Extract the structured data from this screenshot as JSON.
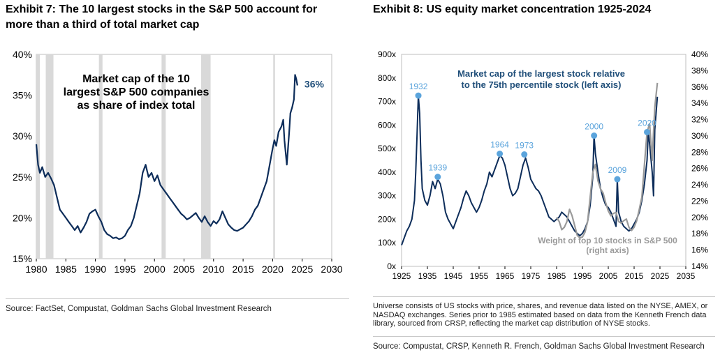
{
  "left": {
    "title": "Exhibit 7: The 10 largest stocks in the S&P 500 account for more than a third of total market cap",
    "source": "Source: FactSet, Compustat, Goldman Sachs Global Investment Research"
  },
  "right": {
    "title": "Exhibit 8: US equity market concentration 1925-2024",
    "note": "Universe consists of US stocks with price, shares, and revenue data listed on the NYSE, AMEX, or NASDAQ exchanges. Series prior to 1985 estimated based on data from the Kenneth French data library, sourced from CRSP, reflecting the market cap distribution of NYSE stocks.",
    "source": "Source: Compustat, CRSP, Kenneth R. French, Goldman Sachs Global Investment Research"
  },
  "colors": {
    "navy": "#0d2d5a",
    "gray_series": "#9a9a9a",
    "marker_blue": "#5ba4dc",
    "recession": "#d9d9d9",
    "label_blue": "#1f4e79"
  },
  "chart_data": [
    {
      "type": "line",
      "annotation": "Market cap of the 10 largest S&P 500 companies as share of index total",
      "end_label": "36%",
      "xlim": [
        1980,
        2030
      ],
      "ylim": [
        15,
        40
      ],
      "x_ticks": [
        "1980",
        "1985",
        "1990",
        "1995",
        "2000",
        "2005",
        "2010",
        "2015",
        "2020",
        "2025",
        "2030"
      ],
      "y_ticks": [
        "15%",
        "20%",
        "25%",
        "30%",
        "35%",
        "40%"
      ],
      "recessions": [
        [
          1980.0,
          1980.6
        ],
        [
          1981.6,
          1982.9
        ],
        [
          1990.6,
          1991.2
        ],
        [
          2001.2,
          2001.9
        ],
        [
          2007.9,
          2009.5
        ],
        [
          2020.1,
          2020.4
        ]
      ],
      "series": [
        {
          "x": [
            1980.0,
            1980.3,
            1980.6,
            1981.0,
            1981.5,
            1982.0,
            1982.5,
            1983.0,
            1983.5,
            1984.0,
            1984.5,
            1985.0,
            1985.5,
            1986.0,
            1986.5,
            1987.0,
            1987.5,
            1988.0,
            1988.5,
            1989.0,
            1989.5,
            1990.0,
            1990.5,
            1991.0,
            1991.5,
            1992.0,
            1992.5,
            1993.0,
            1993.5,
            1994.0,
            1994.5,
            1995.0,
            1995.5,
            1996.0,
            1996.5,
            1997.0,
            1997.5,
            1998.0,
            1998.5,
            1999.0,
            1999.5,
            2000.0,
            2000.5,
            2001.0,
            2001.5,
            2002.0,
            2002.5,
            2003.0,
            2003.5,
            2004.0,
            2004.5,
            2005.0,
            2005.5,
            2006.0,
            2006.5,
            2007.0,
            2007.5,
            2008.0,
            2008.5,
            2009.0,
            2009.5,
            2010.0,
            2010.5,
            2011.0,
            2011.5,
            2012.0,
            2012.5,
            2013.0,
            2013.5,
            2014.0,
            2014.5,
            2015.0,
            2015.5,
            2016.0,
            2016.5,
            2017.0,
            2017.5,
            2018.0,
            2018.5,
            2019.0,
            2019.5,
            2020.0,
            2020.3,
            2020.6,
            2021.0,
            2021.5,
            2021.8,
            2022.0,
            2022.4,
            2022.8,
            2023.0,
            2023.3,
            2023.6,
            2023.8,
            2024.0,
            2024.2
          ],
          "y": [
            29.0,
            26.5,
            25.5,
            26.2,
            25.0,
            25.5,
            24.8,
            24.0,
            22.5,
            21.0,
            20.5,
            20.0,
            19.5,
            19.0,
            18.5,
            19.0,
            18.2,
            18.8,
            19.5,
            20.5,
            20.8,
            21.0,
            20.2,
            19.5,
            18.5,
            18.0,
            17.8,
            17.5,
            17.6,
            17.4,
            17.5,
            17.8,
            18.5,
            19.0,
            20.0,
            21.5,
            23.0,
            25.5,
            26.5,
            25.0,
            25.5,
            24.5,
            25.2,
            24.0,
            23.5,
            23.0,
            22.5,
            22.0,
            21.5,
            21.0,
            20.5,
            20.2,
            19.8,
            20.0,
            20.3,
            20.6,
            20.0,
            19.5,
            20.2,
            19.5,
            19.0,
            19.6,
            19.3,
            19.8,
            20.8,
            20.0,
            19.2,
            18.8,
            18.5,
            18.4,
            18.6,
            18.8,
            19.2,
            19.6,
            20.2,
            21.0,
            21.5,
            22.5,
            23.5,
            24.5,
            26.5,
            28.5,
            29.5,
            28.8,
            30.5,
            31.2,
            32.0,
            29.5,
            26.5,
            30.5,
            32.8,
            33.5,
            34.5,
            37.5,
            37.0,
            36.2
          ]
        }
      ]
    },
    {
      "type": "line",
      "annotation_left": "Market cap of the largest stock relative to the 75th percentile stock (left axis)",
      "annotation_right": "Weight of top 10 stocks in S&P 500 (right axis)",
      "xlim": [
        1925,
        2035
      ],
      "ylim_left": [
        0,
        900
      ],
      "ylim_right": [
        14,
        40
      ],
      "x_ticks": [
        "1925",
        "1935",
        "1945",
        "1955",
        "1965",
        "1975",
        "1985",
        "1995",
        "2005",
        "2015",
        "2025",
        "2035"
      ],
      "y_ticks_left": [
        "0x",
        "100x",
        "200x",
        "300x",
        "400x",
        "500x",
        "600x",
        "700x",
        "800x",
        "900x"
      ],
      "y_ticks_right": [
        "14%",
        "16%",
        "18%",
        "20%",
        "22%",
        "24%",
        "26%",
        "28%",
        "30%",
        "32%",
        "34%",
        "36%",
        "38%",
        "40%"
      ],
      "peaks": [
        {
          "label": "1932",
          "x": 1931.5,
          "y": 725
        },
        {
          "label": "1939",
          "x": 1939.0,
          "y": 380
        },
        {
          "label": "1964",
          "x": 1963.0,
          "y": 478
        },
        {
          "label": "1973",
          "x": 1972.5,
          "y": 475
        },
        {
          "label": "2000",
          "x": 1999.5,
          "y": 555
        },
        {
          "label": "2009",
          "x": 2008.5,
          "y": 370
        },
        {
          "label": "2020",
          "x": 2020.0,
          "y": 570
        }
      ],
      "series": [
        {
          "axis": "left",
          "x": [
            1925,
            1926,
            1927,
            1928,
            1929,
            1930,
            1930.5,
            1931,
            1931.5,
            1932,
            1932.5,
            1933,
            1934,
            1935,
            1936,
            1937,
            1938,
            1939,
            1940,
            1941,
            1942,
            1943,
            1944,
            1945,
            1946,
            1947,
            1948,
            1949,
            1950,
            1951,
            1952,
            1953,
            1954,
            1955,
            1956,
            1957,
            1958,
            1959,
            1960,
            1961,
            1962,
            1963,
            1964,
            1965,
            1966,
            1967,
            1968,
            1969,
            1970,
            1971,
            1972,
            1973,
            1974,
            1975,
            1976,
            1977,
            1978,
            1979,
            1980,
            1981,
            1982,
            1983,
            1984,
            1985,
            1986,
            1987,
            1988,
            1989,
            1990,
            1991,
            1992,
            1993,
            1994,
            1995,
            1996,
            1997,
            1998,
            1999,
            1999.5,
            2000,
            2001,
            2002,
            2003,
            2004,
            2005,
            2006,
            2007,
            2008,
            2008.5,
            2009,
            2010,
            2011,
            2012,
            2013,
            2014,
            2015,
            2016,
            2017,
            2018,
            2019,
            2020,
            2020.5,
            2021,
            2022,
            2022.5,
            2023,
            2024
          ],
          "y": [
            90,
            120,
            150,
            170,
            200,
            280,
            400,
            560,
            725,
            650,
            450,
            330,
            280,
            260,
            300,
            360,
            330,
            370,
            350,
            300,
            230,
            200,
            180,
            160,
            190,
            220,
            250,
            290,
            320,
            300,
            270,
            250,
            230,
            250,
            280,
            320,
            350,
            400,
            380,
            410,
            440,
            470,
            460,
            430,
            380,
            330,
            300,
            310,
            330,
            380,
            430,
            460,
            420,
            370,
            350,
            330,
            320,
            300,
            270,
            240,
            210,
            200,
            190,
            200,
            210,
            230,
            220,
            210,
            190,
            170,
            150,
            140,
            130,
            140,
            160,
            190,
            260,
            380,
            555,
            480,
            400,
            330,
            290,
            260,
            250,
            230,
            200,
            170,
            370,
            230,
            190,
            170,
            160,
            150,
            160,
            180,
            200,
            230,
            280,
            350,
            450,
            570,
            520,
            400,
            300,
            580,
            720
          ]
        },
        {
          "axis": "right",
          "x": [
            1985,
            1986,
            1987,
            1988,
            1989,
            1990,
            1991,
            1992,
            1993,
            1994,
            1995,
            1996,
            1997,
            1998,
            1999,
            2000,
            2001,
            2002,
            2003,
            2004,
            2005,
            2006,
            2007,
            2008,
            2009,
            2010,
            2011,
            2012,
            2013,
            2014,
            2015,
            2016,
            2017,
            2018,
            2019,
            2020,
            2021,
            2022,
            2022.5,
            2023,
            2024
          ],
          "y": [
            20.0,
            19.5,
            18.5,
            18.8,
            19.5,
            21.0,
            20.2,
            19.0,
            17.8,
            17.5,
            17.6,
            18.2,
            19.5,
            22.5,
            25.5,
            26.5,
            24.5,
            23.5,
            23.0,
            21.8,
            20.8,
            20.2,
            20.5,
            20.6,
            19.5,
            19.3,
            19.6,
            19.8,
            18.8,
            18.4,
            18.8,
            19.6,
            21.0,
            22.5,
            26.5,
            30.5,
            31.5,
            27.0,
            30.5,
            33.5,
            36.5
          ]
        }
      ]
    }
  ]
}
